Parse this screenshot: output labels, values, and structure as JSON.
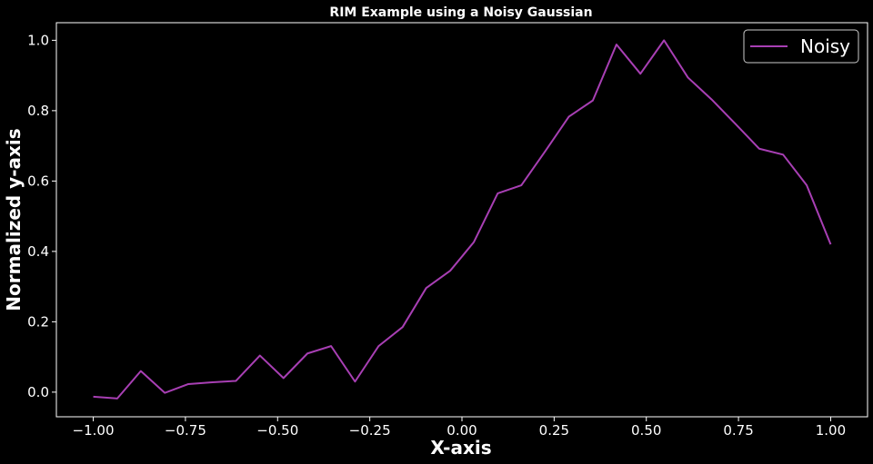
{
  "chart_data": {
    "type": "line",
    "title": "RIM Example using a Noisy Gaussian",
    "xlabel": "X-axis",
    "ylabel": "Normalized y-axis",
    "xlim": [
      -1.1,
      1.1
    ],
    "ylim": [
      -0.07,
      1.05
    ],
    "x_ticks": [
      -1.0,
      -0.75,
      -0.5,
      -0.25,
      0.0,
      0.25,
      0.5,
      0.75,
      1.0
    ],
    "x_tick_labels": [
      "−1.00",
      "−0.75",
      "−0.50",
      "−0.25",
      "0.00",
      "0.25",
      "0.50",
      "0.75",
      "1.00"
    ],
    "y_ticks": [
      0.0,
      0.2,
      0.4,
      0.6,
      0.8,
      1.0
    ],
    "y_tick_labels": [
      "0.0",
      "0.2",
      "0.4",
      "0.6",
      "0.8",
      "1.0"
    ],
    "grid": false,
    "legend_position": "top-right",
    "background": "#000000",
    "series": [
      {
        "name": "Noisy",
        "color": "#a83fb4",
        "x": [
          -1.0,
          -0.935,
          -0.871,
          -0.806,
          -0.742,
          -0.677,
          -0.613,
          -0.548,
          -0.484,
          -0.419,
          -0.355,
          -0.29,
          -0.226,
          -0.161,
          -0.097,
          -0.032,
          0.032,
          0.097,
          0.161,
          0.226,
          0.29,
          0.355,
          0.419,
          0.484,
          0.548,
          0.613,
          0.677,
          0.742,
          0.806,
          0.871,
          0.935,
          1.0
        ],
        "values": [
          -0.013,
          -0.018,
          0.06,
          -0.002,
          0.023,
          0.028,
          0.032,
          0.104,
          0.04,
          0.11,
          0.131,
          0.03,
          0.131,
          0.185,
          0.296,
          0.345,
          0.426,
          0.565,
          0.588,
          0.685,
          0.783,
          0.829,
          0.988,
          0.905,
          1.0,
          0.894,
          0.832,
          0.762,
          0.692,
          0.675,
          0.588,
          0.42
        ]
      }
    ]
  }
}
